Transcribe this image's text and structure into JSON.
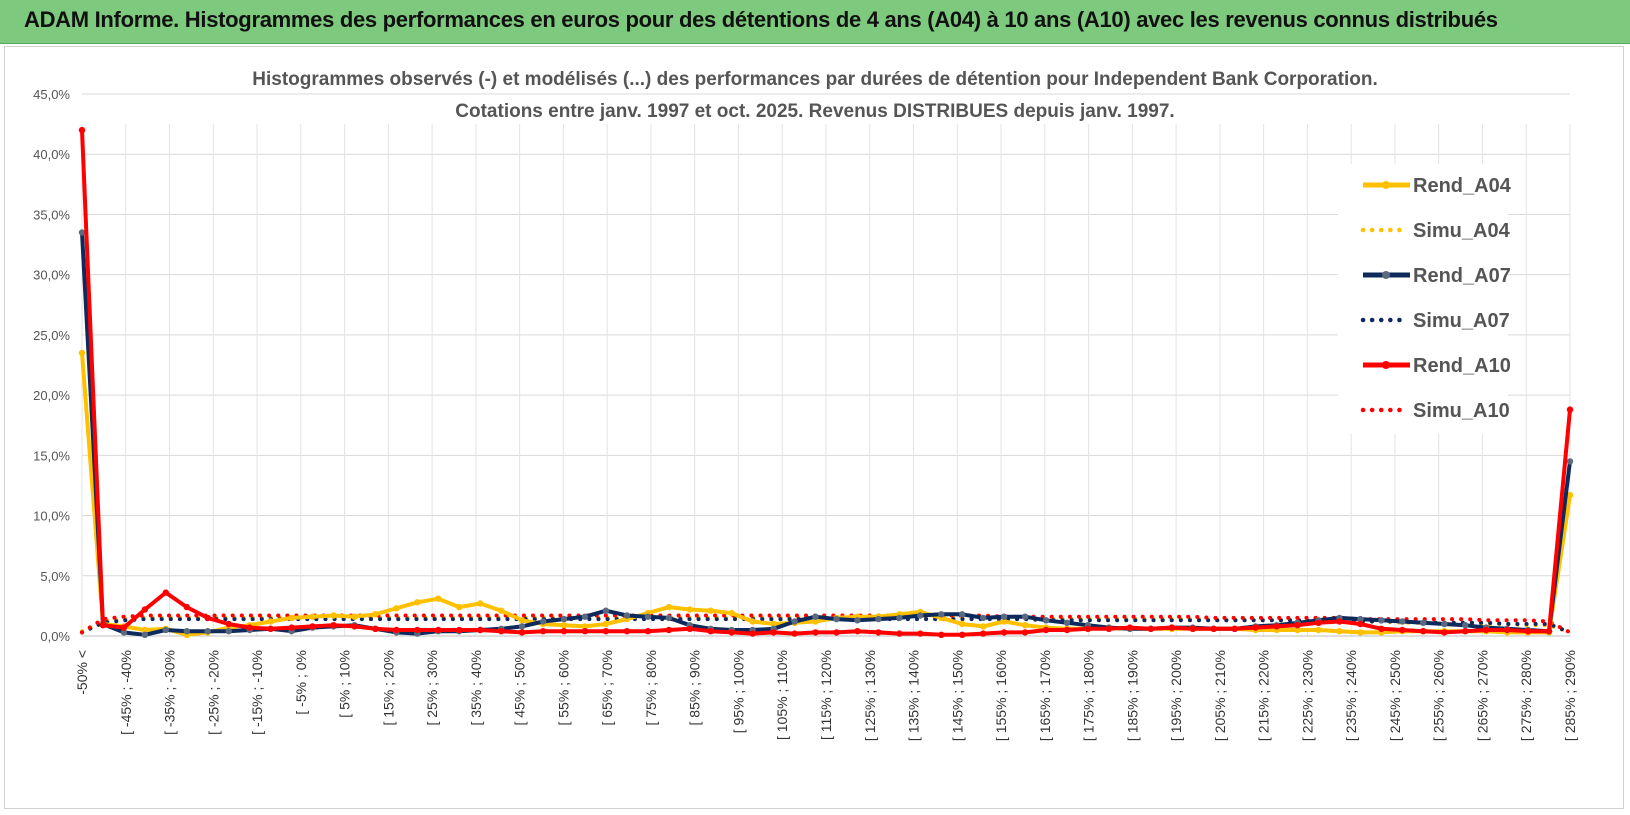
{
  "header": {
    "title": "ADAM Informe. Histogrammes des performances en euros pour des détentions de 4 ans (A04) à 10 ans (A10) avec les revenus connus distribués"
  },
  "chart_data": {
    "type": "line",
    "title_lines": [
      "Histogrammes observés (-) et modélisés (...) des performances par durées de détention pour Independent Bank Corporation.",
      "Cotations entre janv. 1997 et oct. 2025.  Revenus DISTRIBUES depuis janv. 1997."
    ],
    "y_ticks": [
      "0,0%",
      "5,0%",
      "10,0%",
      "15,0%",
      "20,0%",
      "25,0%",
      "30,0%",
      "35,0%",
      "40,0%",
      "45,0%"
    ],
    "ylim": [
      0,
      45
    ],
    "grid": true,
    "legend_position": "right",
    "x_tick_labels": [
      "-50% <",
      "[ -45% ; -40%",
      "[ -35% ; -30%",
      "[ -25% ; -20%",
      "[ -15% ; -10%",
      "[ -5% ; 0%",
      "[ 5% ; 10%",
      "[ 15% ; 20%",
      "[ 25% ; 30%",
      "[ 35% ; 40%",
      "[ 45% ; 50%",
      "[ 55% ; 60%",
      "[ 65% ; 70%",
      "[ 75% ; 80%",
      "[ 85% ; 90%",
      "[ 95% ; 100%",
      "[ 105% ; 110%",
      "[ 115% ; 120%",
      "[ 125% ; 130%",
      "[ 135% ; 140%",
      "[ 145% ; 150%",
      "[ 155% ; 160%",
      "[ 165% ; 170%",
      "[ 175% ; 180%",
      "[ 185% ; 190%",
      "[ 195% ; 200%",
      "[ 205% ; 210%",
      "[ 215% ; 220%",
      "[ 225% ; 230%",
      "[ 235% ; 240%",
      "[ 245% ; 250%",
      "[ 255% ; 260%",
      "[ 265% ; 270%",
      "[ 275% ; 280%",
      "[ 285% ; 290%"
    ],
    "series": [
      {
        "name": "Rend_A04",
        "style": "solid",
        "color": "#ffc000",
        "values": [
          23.5,
          1.0,
          0.8,
          0.5,
          0.6,
          0.1,
          0.3,
          0.7,
          0.9,
          1.2,
          1.5,
          1.6,
          1.7,
          1.6,
          1.8,
          2.3,
          2.8,
          3.1,
          2.4,
          2.7,
          2.1,
          1.3,
          1.0,
          0.9,
          0.8,
          1.0,
          1.4,
          1.9,
          2.4,
          2.2,
          2.1,
          1.9,
          1.2,
          1.0,
          1.1,
          1.2,
          1.5,
          1.6,
          1.6,
          1.8,
          2.0,
          1.5,
          1.0,
          0.8,
          1.2,
          0.9,
          0.7,
          0.6,
          0.6,
          0.7,
          0.6,
          0.6,
          0.6,
          0.6,
          0.6,
          0.6,
          0.5,
          0.5,
          0.5,
          0.5,
          0.4,
          0.3,
          0.3,
          0.4,
          0.4,
          0.4,
          0.4,
          0.4,
          0.3,
          0.3,
          0.3,
          11.7
        ]
      },
      {
        "name": "Simu_A04",
        "style": "dotted",
        "color": "#ffc000",
        "values": [
          0.4,
          1.2,
          1.4,
          1.5,
          1.5,
          1.5,
          1.5,
          1.5,
          1.5,
          1.5,
          1.5,
          1.5,
          1.5,
          1.5,
          1.5,
          1.5,
          1.5,
          1.5,
          1.5,
          1.5,
          1.5,
          1.5,
          1.5,
          1.5,
          1.5,
          1.5,
          1.5,
          1.5,
          1.5,
          1.5,
          1.5,
          1.5,
          1.5,
          1.5,
          1.5,
          1.5,
          1.5,
          1.5,
          1.5,
          1.5,
          1.5,
          1.5,
          1.5,
          1.5,
          1.5,
          1.5,
          1.4,
          1.4,
          1.4,
          1.4,
          1.4,
          1.4,
          1.4,
          1.4,
          1.3,
          1.3,
          1.3,
          1.3,
          1.3,
          1.2,
          1.2,
          1.2,
          1.2,
          1.1,
          1.1,
          1.1,
          1.0,
          1.0,
          1.0,
          0.9,
          0.9,
          0.3
        ]
      },
      {
        "name": "Rend_A07",
        "style": "solid",
        "color": "#0e2a5c",
        "values": [
          33.5,
          1.0,
          0.3,
          0.1,
          0.5,
          0.4,
          0.4,
          0.4,
          0.5,
          0.6,
          0.4,
          0.7,
          0.8,
          0.9,
          0.6,
          0.3,
          0.2,
          0.4,
          0.4,
          0.5,
          0.6,
          0.8,
          1.2,
          1.4,
          1.6,
          2.1,
          1.7,
          1.6,
          1.5,
          0.9,
          0.6,
          0.5,
          0.5,
          0.6,
          1.2,
          1.6,
          1.4,
          1.3,
          1.4,
          1.5,
          1.7,
          1.8,
          1.8,
          1.5,
          1.6,
          1.6,
          1.3,
          1.1,
          0.9,
          0.7,
          0.6,
          0.6,
          0.7,
          0.7,
          0.6,
          0.6,
          0.8,
          0.9,
          1.1,
          1.3,
          1.5,
          1.4,
          1.3,
          1.2,
          1.1,
          1.0,
          0.9,
          0.7,
          0.6,
          0.5,
          0.4,
          14.5
        ]
      },
      {
        "name": "Simu_A07",
        "style": "dotted",
        "color": "#0e2a5c",
        "values": [
          0.3,
          1.1,
          1.3,
          1.4,
          1.4,
          1.4,
          1.4,
          1.4,
          1.4,
          1.4,
          1.4,
          1.4,
          1.4,
          1.4,
          1.4,
          1.4,
          1.4,
          1.4,
          1.4,
          1.4,
          1.4,
          1.4,
          1.4,
          1.4,
          1.4,
          1.4,
          1.4,
          1.4,
          1.4,
          1.4,
          1.4,
          1.4,
          1.4,
          1.4,
          1.4,
          1.4,
          1.4,
          1.4,
          1.4,
          1.4,
          1.4,
          1.4,
          1.4,
          1.4,
          1.4,
          1.4,
          1.3,
          1.3,
          1.3,
          1.3,
          1.3,
          1.3,
          1.3,
          1.3,
          1.3,
          1.3,
          1.3,
          1.3,
          1.3,
          1.2,
          1.2,
          1.2,
          1.2,
          1.2,
          1.1,
          1.1,
          1.1,
          1.1,
          1.0,
          1.0,
          1.0,
          0.3
        ]
      },
      {
        "name": "Rend_A10",
        "style": "solid",
        "color": "#ff0000",
        "values": [
          42.0,
          0.9,
          0.7,
          2.2,
          3.6,
          2.4,
          1.5,
          1.0,
          0.7,
          0.6,
          0.7,
          0.8,
          0.9,
          0.8,
          0.6,
          0.5,
          0.5,
          0.5,
          0.5,
          0.5,
          0.4,
          0.3,
          0.4,
          0.4,
          0.4,
          0.4,
          0.4,
          0.4,
          0.5,
          0.6,
          0.4,
          0.3,
          0.2,
          0.3,
          0.2,
          0.3,
          0.3,
          0.4,
          0.3,
          0.2,
          0.2,
          0.1,
          0.1,
          0.2,
          0.3,
          0.3,
          0.5,
          0.5,
          0.6,
          0.6,
          0.7,
          0.6,
          0.7,
          0.6,
          0.6,
          0.6,
          0.7,
          0.8,
          0.9,
          1.1,
          1.2,
          1.0,
          0.6,
          0.5,
          0.4,
          0.3,
          0.4,
          0.5,
          0.5,
          0.4,
          0.4,
          18.8
        ]
      },
      {
        "name": "Simu_A10",
        "style": "dotted",
        "color": "#ff0000",
        "values": [
          0.3,
          1.4,
          1.6,
          1.7,
          1.7,
          1.7,
          1.7,
          1.7,
          1.7,
          1.7,
          1.7,
          1.7,
          1.7,
          1.7,
          1.7,
          1.7,
          1.7,
          1.7,
          1.7,
          1.7,
          1.7,
          1.7,
          1.7,
          1.7,
          1.7,
          1.7,
          1.7,
          1.7,
          1.7,
          1.7,
          1.7,
          1.7,
          1.7,
          1.7,
          1.7,
          1.7,
          1.7,
          1.7,
          1.7,
          1.7,
          1.7,
          1.7,
          1.7,
          1.7,
          1.6,
          1.6,
          1.6,
          1.6,
          1.6,
          1.6,
          1.6,
          1.6,
          1.6,
          1.6,
          1.5,
          1.5,
          1.5,
          1.5,
          1.5,
          1.5,
          1.5,
          1.4,
          1.4,
          1.4,
          1.4,
          1.4,
          1.4,
          1.3,
          1.3,
          1.3,
          1.2,
          0.3
        ]
      }
    ]
  }
}
